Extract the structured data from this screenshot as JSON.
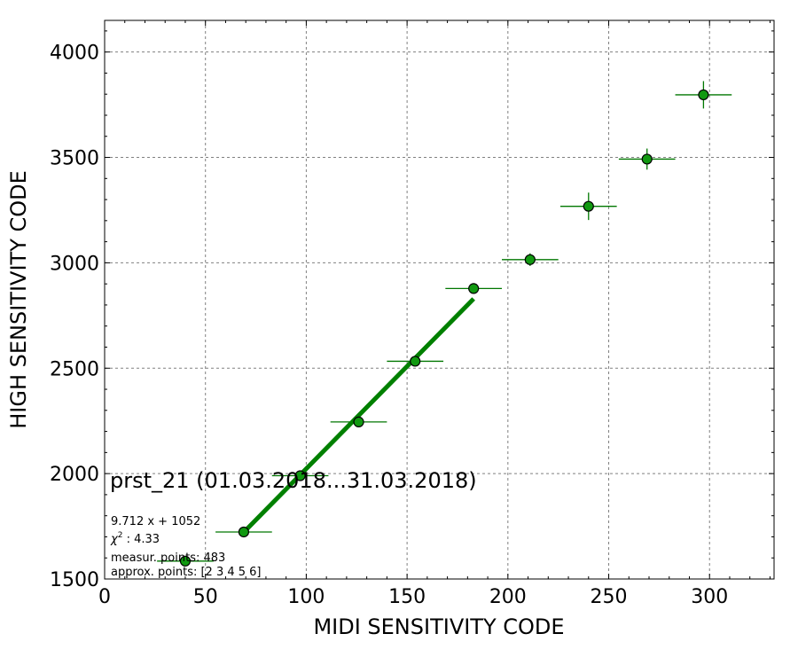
{
  "chart_data": {
    "type": "scatter",
    "title": "",
    "xlabel": "MIDI SENSITIVITY CODE",
    "ylabel": "HIGH SENSITIVITY CODE",
    "xlim": [
      0,
      332
    ],
    "ylim": [
      1500,
      4150
    ],
    "x_ticks": [
      0,
      50,
      100,
      150,
      200,
      250,
      300
    ],
    "y_ticks": [
      1500,
      2000,
      2500,
      3000,
      3500,
      4000
    ],
    "grid": true,
    "annotation": "prst_21 (01.03.2018...31.03.2018)",
    "fit_text": {
      "equation": "9.712 x + 1052",
      "chi2": "4.33",
      "measur_points": "measur. points: 483",
      "approx_points": "approx. points: [2 3 4 5 6]"
    },
    "points": [
      {
        "x": 40,
        "y": 1585,
        "xerr": 14,
        "yerr": 10
      },
      {
        "x": 69,
        "y": 1723,
        "xerr": 14,
        "yerr": 10
      },
      {
        "x": 97,
        "y": 1990,
        "xerr": 14,
        "yerr": 15
      },
      {
        "x": 126,
        "y": 2245,
        "xerr": 14,
        "yerr": 18
      },
      {
        "x": 154,
        "y": 2533,
        "xerr": 14,
        "yerr": 15
      },
      {
        "x": 183,
        "y": 2878,
        "xerr": 14,
        "yerr": 25
      },
      {
        "x": 211,
        "y": 3015,
        "xerr": 14,
        "yerr": 30
      },
      {
        "x": 240,
        "y": 3268,
        "xerr": 14,
        "yerr": 65
      },
      {
        "x": 269,
        "y": 3492,
        "xerr": 14,
        "yerr": 50
      },
      {
        "x": 297,
        "y": 3797,
        "xerr": 14,
        "yerr": 65
      }
    ],
    "fit_line": {
      "slope": 9.712,
      "intercept": 1052,
      "x_range": [
        69,
        183
      ]
    },
    "colors": {
      "marker": "#119911",
      "errorbar": "#007700",
      "fit": "#008000",
      "grid": "#808080"
    }
  }
}
